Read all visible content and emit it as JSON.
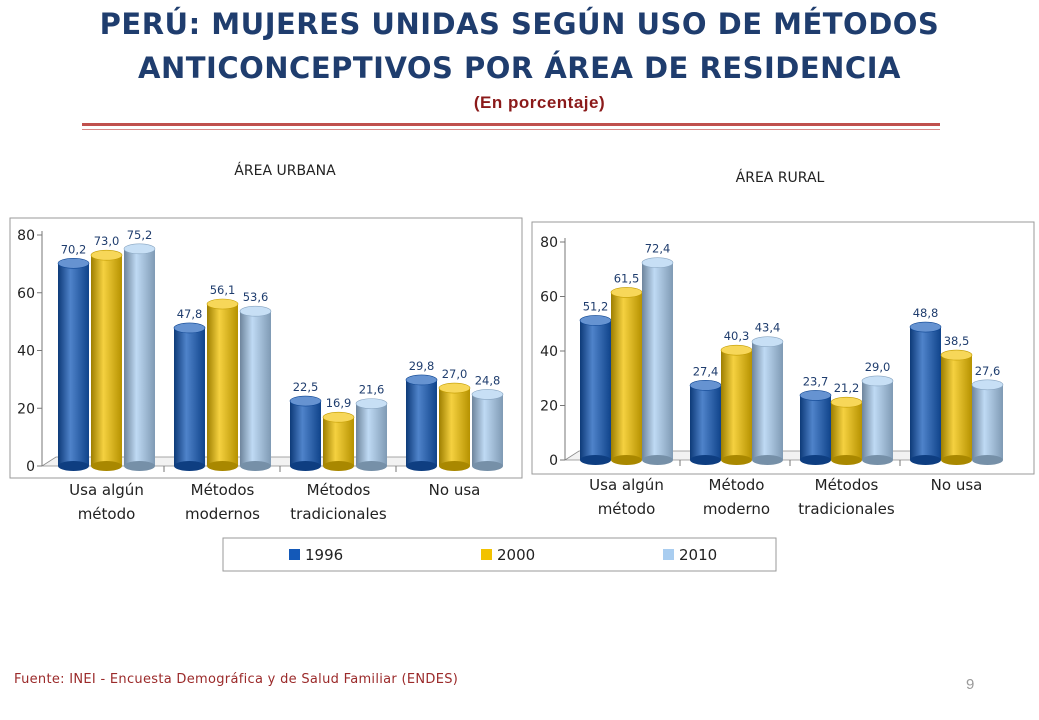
{
  "header": {
    "title_line1": "PERÚ: MUJERES UNIDAS SEGÚN USO DE MÉTODOS",
    "title_line2": "ANTICONCEPTIVOS POR ÁREA DE RESIDENCIA",
    "subtitle": "(En porcentaje)"
  },
  "footer": {
    "source": "Fuente: INEI - Encuesta Demográfica y de Salud Familiar (ENDES)",
    "page_number": "9"
  },
  "colors": {
    "1996": "#1459b8",
    "2000": "#f2c200",
    "2010": "#a9cdf0"
  },
  "chart_data": [
    {
      "type": "bar",
      "title": "ÁREA URBANA",
      "categories": [
        [
          "Usa algún",
          "método"
        ],
        [
          "Métodos",
          "modernos"
        ],
        [
          "Métodos",
          "tradicionales"
        ],
        [
          "No usa"
        ]
      ],
      "series": [
        {
          "name": "1996",
          "values": [
            70.2,
            47.8,
            22.5,
            29.8
          ],
          "labels": [
            "70,2",
            "47,8",
            "22,5",
            "29,8"
          ]
        },
        {
          "name": "2000",
          "values": [
            73.0,
            56.1,
            16.9,
            27.0
          ],
          "labels": [
            "73,0",
            "56,1",
            "16,9",
            "27,0"
          ]
        },
        {
          "name": "2010",
          "values": [
            75.2,
            53.6,
            21.6,
            24.8
          ],
          "labels": [
            "75,2",
            "53,6",
            "21,6",
            "24,8"
          ]
        }
      ],
      "yticks": [
        "0",
        "20",
        "40",
        "60",
        "80"
      ],
      "ylim": [
        0,
        80
      ]
    },
    {
      "type": "bar",
      "title": "ÁREA RURAL",
      "categories": [
        [
          "Usa algún",
          "método"
        ],
        [
          "Método",
          "moderno"
        ],
        [
          "Métodos",
          "tradicionales"
        ],
        [
          "No usa"
        ]
      ],
      "series": [
        {
          "name": "1996",
          "values": [
            51.2,
            27.4,
            23.7,
            48.8
          ],
          "labels": [
            "51,2",
            "27,4",
            "23,7",
            "48,8"
          ]
        },
        {
          "name": "2000",
          "values": [
            61.5,
            40.3,
            21.2,
            38.5
          ],
          "labels": [
            "61,5",
            "40,3",
            "21,2",
            "38,5"
          ]
        },
        {
          "name": "2010",
          "values": [
            72.4,
            43.4,
            29.0,
            27.6
          ],
          "labels": [
            "72,4",
            "43,4",
            "29,0",
            "27,6"
          ]
        }
      ],
      "yticks": [
        "0",
        "20",
        "40",
        "60",
        "80"
      ],
      "ylim": [
        0,
        80
      ]
    }
  ],
  "legend": {
    "position": "bottom-center",
    "items": [
      "1996",
      "2000",
      "2010"
    ]
  }
}
